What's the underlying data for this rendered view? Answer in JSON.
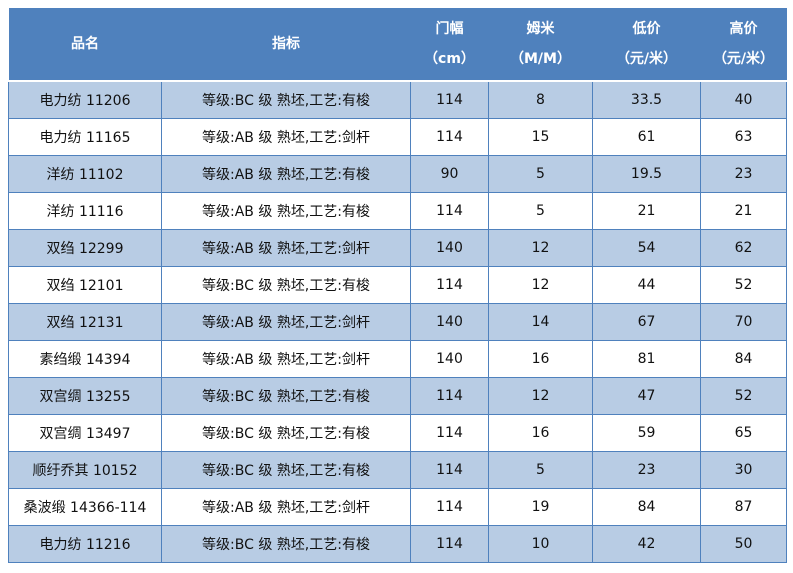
{
  "colors": {
    "header": "#4f81bd",
    "band": "#b8cce4"
  },
  "headers": [
    {
      "line1": "品名",
      "line2": ""
    },
    {
      "line1": "指标",
      "line2": ""
    },
    {
      "line1": "门幅",
      "line2": "（cm）"
    },
    {
      "line1": "姆米",
      "line2": "（M/M）"
    },
    {
      "line1": "低价",
      "line2": "（元/米）"
    },
    {
      "line1": "高价",
      "line2": "（元/米）"
    }
  ],
  "rows": [
    [
      "电力纺 11206",
      "等级:BC 级 熟坯,工艺:有梭",
      "114",
      "8",
      "33.5",
      "40"
    ],
    [
      "电力纺 11165",
      "等级:AB 级 熟坯,工艺:剑杆",
      "114",
      "15",
      "61",
      "63"
    ],
    [
      "洋纺 11102",
      "等级:AB 级 熟坯,工艺:有梭",
      "90",
      "5",
      "19.5",
      "23"
    ],
    [
      "洋纺 11116",
      "等级:AB 级 熟坯,工艺:有梭",
      "114",
      "5",
      "21",
      "21"
    ],
    [
      "双绉 12299",
      "等级:AB 级 熟坯,工艺:剑杆",
      "140",
      "12",
      "54",
      "62"
    ],
    [
      "双绉 12101",
      "等级:BC 级 熟坯,工艺:有梭",
      "114",
      "12",
      "44",
      "52"
    ],
    [
      "双绉 12131",
      "等级:AB 级 熟坯,工艺:剑杆",
      "140",
      "14",
      "67",
      "70"
    ],
    [
      "素绉缎 14394",
      "等级:AB 级 熟坯,工艺:剑杆",
      "140",
      "16",
      "81",
      "84"
    ],
    [
      "双宫绸 13255",
      "等级:BC 级 熟坯,工艺:有梭",
      "114",
      "12",
      "47",
      "52"
    ],
    [
      "双宫绸 13497",
      "等级:BC 级 熟坯,工艺:有梭",
      "114",
      "16",
      "59",
      "65"
    ],
    [
      "顺纡乔其 10152",
      "等级:BC 级 熟坯,工艺:有梭",
      "114",
      "5",
      "23",
      "30"
    ],
    [
      "桑波缎 14366-114",
      "等级:AB 级 熟坯,工艺:剑杆",
      "114",
      "19",
      "84",
      "87"
    ],
    [
      "电力纺 11216",
      "等级:BC 级 熟坯,工艺:有梭",
      "114",
      "10",
      "42",
      "50"
    ]
  ]
}
